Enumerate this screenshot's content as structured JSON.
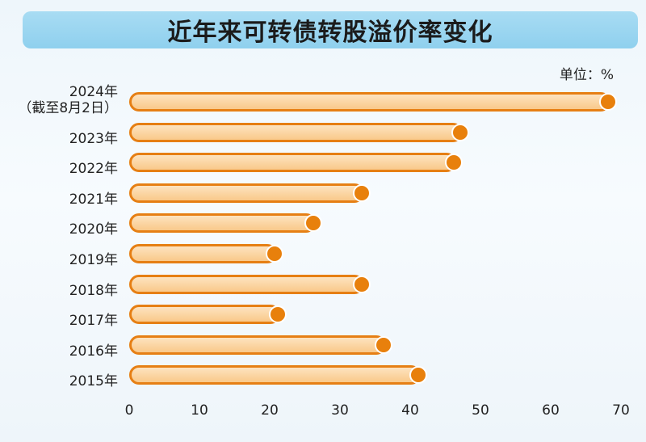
{
  "chart_data": {
    "type": "bar",
    "orientation": "horizontal",
    "title": "近年来可转债转股溢价率变化",
    "unit": "单位：%",
    "categories": [
      {
        "label": "2024年",
        "label2": "（截至8月2日）"
      },
      {
        "label": "2023年"
      },
      {
        "label": "2022年"
      },
      {
        "label": "2021年"
      },
      {
        "label": "2020年"
      },
      {
        "label": "2019年"
      },
      {
        "label": "2018年"
      },
      {
        "label": "2017年"
      },
      {
        "label": "2016年"
      },
      {
        "label": "2015年"
      }
    ],
    "values": [
      68.5,
      47.5,
      46.5,
      33.5,
      26.5,
      21,
      33.5,
      21.5,
      36.5,
      41.5
    ],
    "xlim": [
      0,
      70
    ],
    "xticks": [
      "0",
      "10",
      "20",
      "30",
      "40",
      "50",
      "60",
      "70"
    ],
    "grid": false,
    "colors": {
      "bar_fill": "#f9c98a",
      "bar_border": "#e67f14",
      "marker": "#e8800c",
      "banner": "#8fd0ee"
    }
  }
}
